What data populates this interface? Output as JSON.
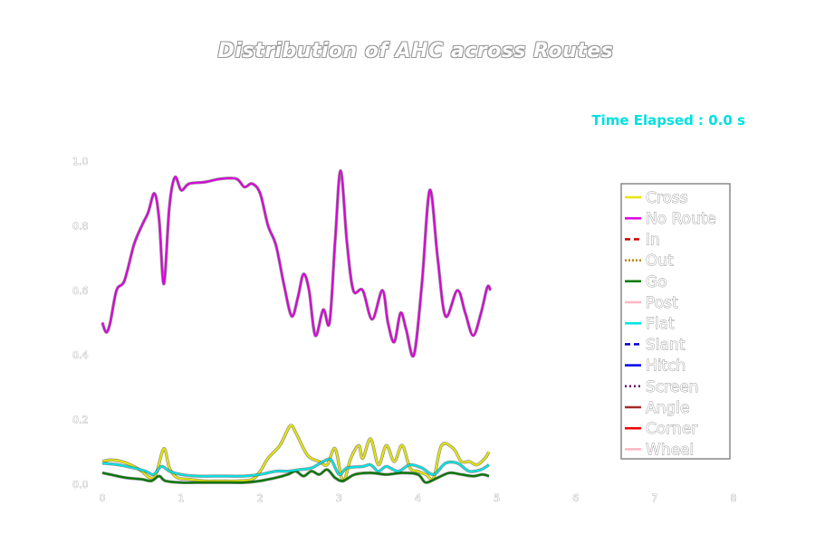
{
  "title": "Distribution of AHC across Routes",
  "timer": "Time Elapsed : 0.0 s",
  "chart_data": {
    "type": "line",
    "title": "Distribution of AHC across Routes",
    "xlabel": "",
    "ylabel": "",
    "xlim": [
      0,
      8
    ],
    "ylim": [
      0,
      1.0
    ],
    "x_ticks": [
      "0",
      "1",
      "2",
      "3",
      "4",
      "5",
      "6",
      "7",
      "8"
    ],
    "y_ticks": [
      "0.0",
      "0.2",
      "0.4",
      "0.6",
      "0.8",
      "1.0"
    ],
    "grid": false,
    "legend_position": "right",
    "series": [
      {
        "name": "Cross",
        "color": "#e6e600",
        "dash": "solid",
        "points": [
          [
            0,
            0.07
          ],
          [
            0.1,
            0.075
          ],
          [
            0.25,
            0.07
          ],
          [
            0.4,
            0.055
          ],
          [
            0.5,
            0.04
          ],
          [
            0.6,
            0.02
          ],
          [
            0.68,
            0.03
          ],
          [
            0.78,
            0.11
          ],
          [
            0.85,
            0.05
          ],
          [
            0.95,
            0.02
          ],
          [
            1.1,
            0.015
          ],
          [
            1.3,
            0.01
          ],
          [
            1.5,
            0.01
          ],
          [
            1.7,
            0.01
          ],
          [
            1.9,
            0.015
          ],
          [
            2.0,
            0.04
          ],
          [
            2.1,
            0.08
          ],
          [
            2.25,
            0.12
          ],
          [
            2.38,
            0.18
          ],
          [
            2.45,
            0.16
          ],
          [
            2.6,
            0.09
          ],
          [
            2.75,
            0.07
          ],
          [
            2.85,
            0.06
          ],
          [
            2.95,
            0.11
          ],
          [
            3.05,
            0.01
          ],
          [
            3.15,
            0.08
          ],
          [
            3.25,
            0.12
          ],
          [
            3.3,
            0.08
          ],
          [
            3.4,
            0.14
          ],
          [
            3.5,
            0.06
          ],
          [
            3.6,
            0.12
          ],
          [
            3.7,
            0.07
          ],
          [
            3.8,
            0.12
          ],
          [
            3.9,
            0.05
          ],
          [
            4.0,
            0.04
          ],
          [
            4.1,
            0.03
          ],
          [
            4.2,
            0.02
          ],
          [
            4.3,
            0.12
          ],
          [
            4.45,
            0.11
          ],
          [
            4.55,
            0.07
          ],
          [
            4.65,
            0.07
          ],
          [
            4.75,
            0.06
          ],
          [
            4.85,
            0.08
          ],
          [
            4.9,
            0.1
          ]
        ]
      },
      {
        "name": "No Route",
        "color": "#dd00dd",
        "dash": "solid",
        "points": [
          [
            0,
            0.5
          ],
          [
            0.05,
            0.47
          ],
          [
            0.1,
            0.5
          ],
          [
            0.18,
            0.6
          ],
          [
            0.28,
            0.63
          ],
          [
            0.4,
            0.74
          ],
          [
            0.5,
            0.8
          ],
          [
            0.58,
            0.84
          ],
          [
            0.66,
            0.9
          ],
          [
            0.72,
            0.82
          ],
          [
            0.78,
            0.62
          ],
          [
            0.85,
            0.86
          ],
          [
            0.92,
            0.95
          ],
          [
            1.0,
            0.91
          ],
          [
            1.1,
            0.93
          ],
          [
            1.3,
            0.935
          ],
          [
            1.5,
            0.945
          ],
          [
            1.7,
            0.945
          ],
          [
            1.8,
            0.92
          ],
          [
            1.9,
            0.93
          ],
          [
            2.0,
            0.9
          ],
          [
            2.1,
            0.8
          ],
          [
            2.2,
            0.74
          ],
          [
            2.3,
            0.62
          ],
          [
            2.4,
            0.52
          ],
          [
            2.48,
            0.58
          ],
          [
            2.55,
            0.65
          ],
          [
            2.62,
            0.6
          ],
          [
            2.7,
            0.46
          ],
          [
            2.8,
            0.54
          ],
          [
            2.88,
            0.5
          ],
          [
            2.95,
            0.75
          ],
          [
            3.02,
            0.97
          ],
          [
            3.1,
            0.75
          ],
          [
            3.18,
            0.6
          ],
          [
            3.3,
            0.6
          ],
          [
            3.42,
            0.51
          ],
          [
            3.55,
            0.6
          ],
          [
            3.62,
            0.5
          ],
          [
            3.7,
            0.44
          ],
          [
            3.78,
            0.53
          ],
          [
            3.85,
            0.48
          ],
          [
            3.95,
            0.4
          ],
          [
            4.05,
            0.62
          ],
          [
            4.15,
            0.91
          ],
          [
            4.25,
            0.7
          ],
          [
            4.35,
            0.52
          ],
          [
            4.5,
            0.6
          ],
          [
            4.6,
            0.53
          ],
          [
            4.7,
            0.46
          ],
          [
            4.8,
            0.53
          ],
          [
            4.88,
            0.61
          ],
          [
            4.92,
            0.6
          ]
        ]
      },
      {
        "name": "In",
        "color": "#cc0000",
        "dash": "6,4",
        "points": []
      },
      {
        "name": "Out",
        "color": "#b8860b",
        "dash": "2,2",
        "points": []
      },
      {
        "name": "Go",
        "color": "#007700",
        "dash": "solid",
        "points": [
          [
            0,
            0.035
          ],
          [
            0.1,
            0.03
          ],
          [
            0.3,
            0.02
          ],
          [
            0.5,
            0.015
          ],
          [
            0.62,
            0.01
          ],
          [
            0.72,
            0.025
          ],
          [
            0.8,
            0.01
          ],
          [
            1.0,
            0.005
          ],
          [
            1.2,
            0.005
          ],
          [
            1.4,
            0.005
          ],
          [
            1.6,
            0.005
          ],
          [
            1.8,
            0.005
          ],
          [
            2.0,
            0.01
          ],
          [
            2.2,
            0.02
          ],
          [
            2.35,
            0.03
          ],
          [
            2.45,
            0.04
          ],
          [
            2.55,
            0.025
          ],
          [
            2.65,
            0.04
          ],
          [
            2.75,
            0.03
          ],
          [
            2.85,
            0.045
          ],
          [
            2.95,
            0.02
          ],
          [
            3.05,
            0.01
          ],
          [
            3.2,
            0.03
          ],
          [
            3.4,
            0.035
          ],
          [
            3.6,
            0.03
          ],
          [
            3.8,
            0.035
          ],
          [
            4.0,
            0.03
          ],
          [
            4.1,
            0.005
          ],
          [
            4.25,
            0.02
          ],
          [
            4.4,
            0.035
          ],
          [
            4.55,
            0.03
          ],
          [
            4.7,
            0.025
          ],
          [
            4.82,
            0.03
          ],
          [
            4.9,
            0.025
          ]
        ]
      },
      {
        "name": "Post",
        "color": "#ffb6c1",
        "dash": "solid",
        "points": []
      },
      {
        "name": "Flat",
        "color": "#00e5e5",
        "dash": "solid",
        "points": [
          [
            0,
            0.065
          ],
          [
            0.2,
            0.06
          ],
          [
            0.4,
            0.05
          ],
          [
            0.55,
            0.04
          ],
          [
            0.65,
            0.03
          ],
          [
            0.75,
            0.055
          ],
          [
            0.85,
            0.04
          ],
          [
            1.0,
            0.03
          ],
          [
            1.2,
            0.025
          ],
          [
            1.4,
            0.025
          ],
          [
            1.6,
            0.025
          ],
          [
            1.8,
            0.025
          ],
          [
            2.0,
            0.03
          ],
          [
            2.2,
            0.04
          ],
          [
            2.35,
            0.04
          ],
          [
            2.5,
            0.045
          ],
          [
            2.65,
            0.05
          ],
          [
            2.8,
            0.07
          ],
          [
            2.9,
            0.075
          ],
          [
            3.0,
            0.03
          ],
          [
            3.1,
            0.05
          ],
          [
            3.3,
            0.055
          ],
          [
            3.4,
            0.06
          ],
          [
            3.5,
            0.04
          ],
          [
            3.6,
            0.055
          ],
          [
            3.75,
            0.04
          ],
          [
            3.9,
            0.06
          ],
          [
            4.05,
            0.05
          ],
          [
            4.2,
            0.03
          ],
          [
            4.35,
            0.065
          ],
          [
            4.5,
            0.065
          ],
          [
            4.65,
            0.04
          ],
          [
            4.8,
            0.045
          ],
          [
            4.9,
            0.06
          ]
        ]
      },
      {
        "name": "Slant",
        "color": "#0000cc",
        "dash": "6,4",
        "points": []
      },
      {
        "name": "Hitch",
        "color": "#0000ee",
        "dash": "solid",
        "points": []
      },
      {
        "name": "Screen",
        "color": "#660066",
        "dash": "2,3",
        "points": []
      },
      {
        "name": "Angle",
        "color": "#a52a2a",
        "dash": "solid",
        "points": []
      },
      {
        "name": "Corner",
        "color": "#ee0000",
        "dash": "solid",
        "points": []
      },
      {
        "name": "Wheel",
        "color": "#ffb6c1",
        "dash": "solid",
        "points": []
      }
    ]
  }
}
